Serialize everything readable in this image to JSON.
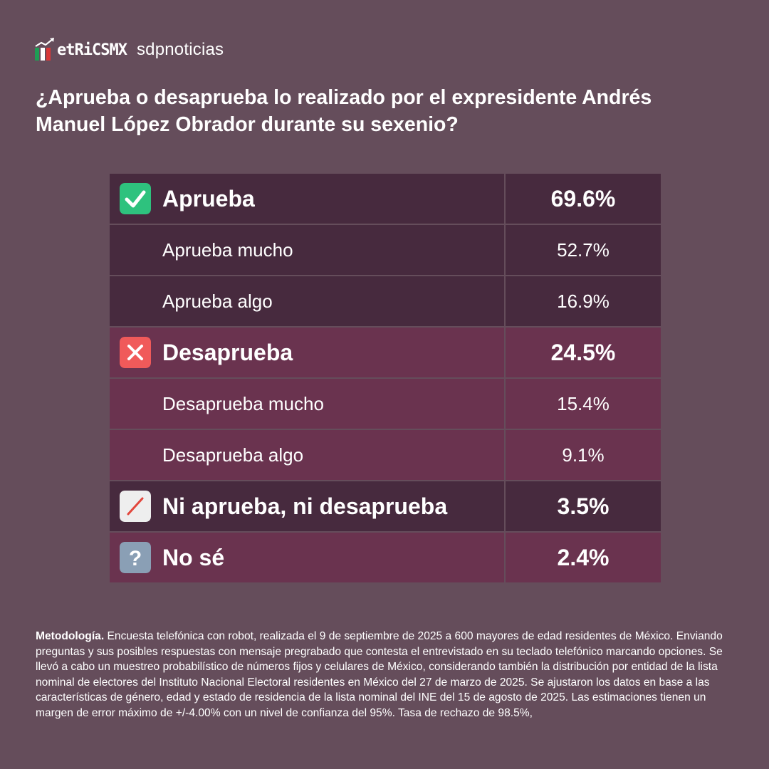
{
  "header": {
    "logo_metrics": "etRiCSMX",
    "logo_sdp": "sdpnoticias"
  },
  "question": "¿Aprueba o desaprueba lo realizado por el expresidente Andrés Manuel López Obrador durante su sexenio?",
  "chart_data": {
    "type": "table",
    "rows": [
      {
        "label": "Aprueba",
        "value": "69.6%",
        "level": "main",
        "icon": "check-mark-icon"
      },
      {
        "label": "Aprueba mucho",
        "value": "52.7%",
        "level": "sub"
      },
      {
        "label": "Aprueba algo",
        "value": "16.9%",
        "level": "sub"
      },
      {
        "label": "Desaprueba",
        "value": "24.5%",
        "level": "main",
        "icon": "cross-mark-icon"
      },
      {
        "label": "Desaprueba mucho",
        "value": "15.4%",
        "level": "sub"
      },
      {
        "label": "Desaprueba algo",
        "value": "9.1%",
        "level": "sub"
      },
      {
        "label": "Ni aprueba, ni desaprueba",
        "value": "3.5%",
        "level": "main",
        "icon": "slash-icon"
      },
      {
        "label": "No sé",
        "value": "2.4%",
        "level": "main",
        "icon": "question-mark-icon"
      }
    ]
  },
  "methodology": {
    "title": "Metodología.",
    "text": "Encuesta telefónica con robot, realizada el 9 de septiembre de 2025 a 600 mayores de edad residentes de México. Enviando preguntas y sus posibles respuestas con mensaje pregrabado que contesta el entrevistado en su teclado telefónico marcando opciones. Se llevó a cabo un muestreo probabilístico de números fijos y celulares de México, considerando también la distribución por entidad de la lista nominal de electores del Instituto Nacional Electoral residentes en México del 27 de marzo de 2025. Se ajustaron los datos en base a las características de género, edad y estado de residencia de la lista nominal del INE del 15 de agosto de 2025. Las estimaciones tienen un margen de error máximo de +/-4.00% con un nivel de confianza del 95%. Tasa de rechazo de 98.5%,"
  },
  "colors": {
    "background": "#654d5b",
    "row_approve": "#472a3e",
    "row_disapprove": "#6a334f",
    "check_green": "#2ec27e",
    "cross_red": "#f05a5a",
    "question_blue": "#8a9fb5"
  }
}
